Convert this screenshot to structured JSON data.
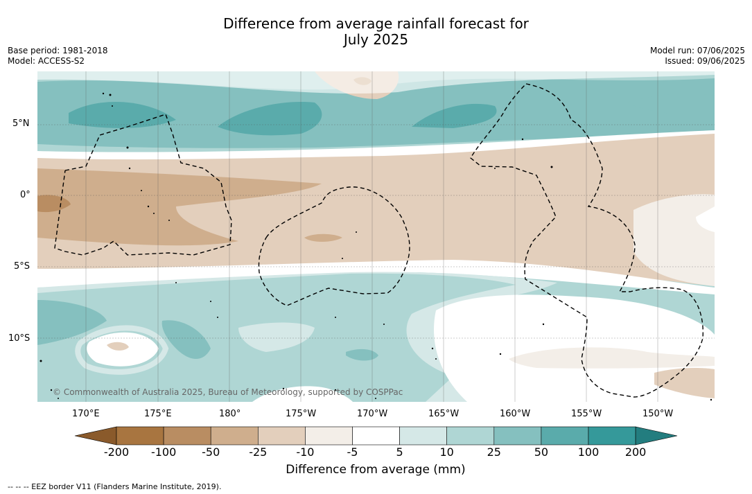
{
  "title": {
    "line1": "Difference from average rainfall forecast for",
    "line2": "July 2025"
  },
  "meta_left": {
    "base_period": "Base period: 1981-2018",
    "model": "Model: ACCESS-S2"
  },
  "meta_right": {
    "model_run": "Model run: 07/06/2025",
    "issued": "Issued: 09/06/2025"
  },
  "axes": {
    "lat_labels": [
      "5°N",
      "0°",
      "5°S",
      "10°S"
    ],
    "lon_labels": [
      "170°E",
      "175°E",
      "180°",
      "175°W",
      "170°W",
      "165°W",
      "160°W",
      "155°W",
      "150°W"
    ]
  },
  "copyright": "© Commonwealth of Australia 2025, Bureau of Meteorology, supported by COSPPac",
  "colorbar": {
    "title": "Difference from average (mm)",
    "labels": [
      "-200",
      "-100",
      "-50",
      "-25",
      "-10",
      "-5",
      "5",
      "10",
      "25",
      "50",
      "100",
      "200"
    ],
    "colors": [
      "#a87540",
      "#b98d62",
      "#cfae8d",
      "#e3cfbc",
      "#f3eee8",
      "#ffffff",
      "#d5e8e7",
      "#afd6d4",
      "#85c0bf",
      "#5aabab",
      "#35999a",
      "#237d7f"
    ]
  },
  "eez_note": "--  --  -- EEZ border V11 (Flanders Marine Institute, 2019)."
}
